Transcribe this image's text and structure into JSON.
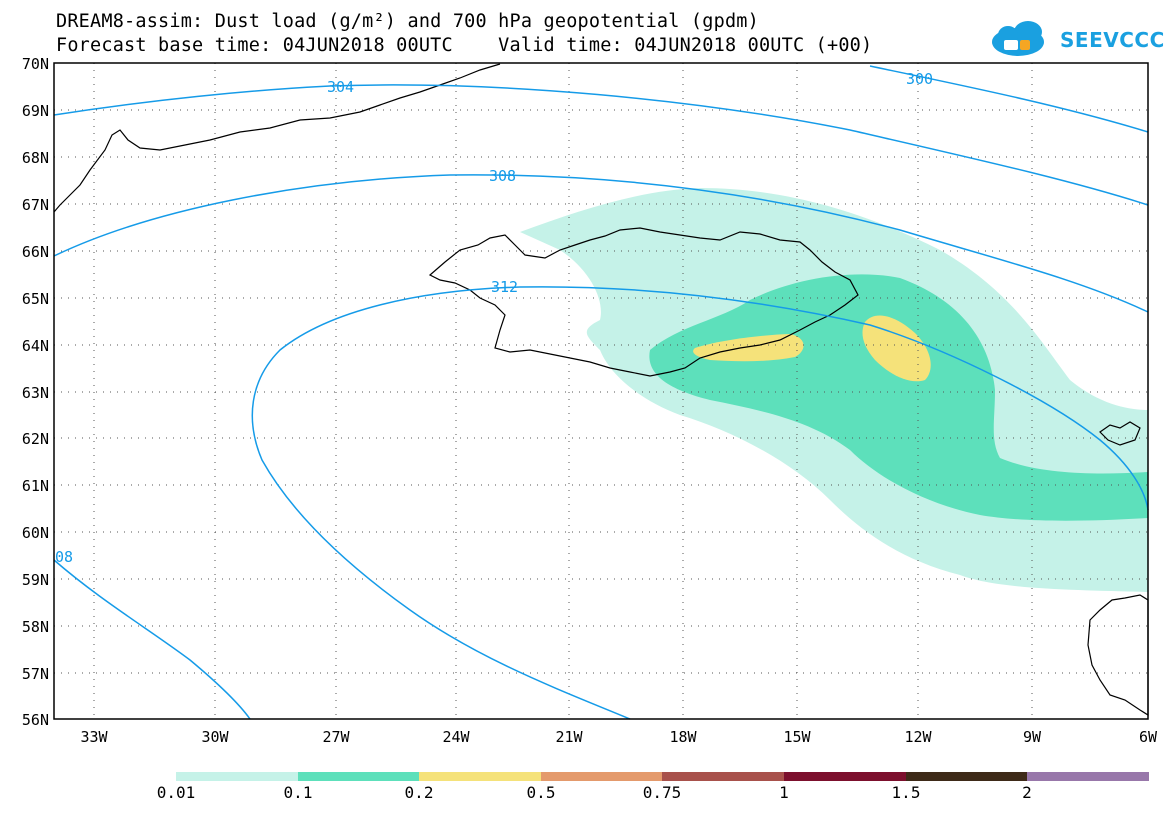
{
  "title_line1": "DREAM8-assim: Dust load (g/m²) and 700 hPa geopotential (gpdm)",
  "title_line2": "Forecast base time: 04JUN2018 00UTC    Valid time: 04JUN2018 00UTC (+00)",
  "logo_text": "SEEVCCC",
  "logo_icon": "cloud-icon",
  "lat_labels": [
    "70N",
    "69N",
    "68N",
    "67N",
    "66N",
    "65N",
    "64N",
    "63N",
    "62N",
    "61N",
    "60N",
    "59N",
    "58N",
    "57N",
    "56N"
  ],
  "lon_labels": [
    "33W",
    "30W",
    "27W",
    "24W",
    "21W",
    "18W",
    "15W",
    "12W",
    "9W",
    "6W"
  ],
  "contour_labels": [
    "304",
    "300",
    "308",
    "312",
    "08"
  ],
  "colorbar": {
    "labels": [
      "0.01",
      "0.1",
      "0.2",
      "0.5",
      "0.75",
      "1",
      "1.5",
      "2"
    ],
    "colors": [
      "#c5f2e8",
      "#5de0bb",
      "#f5e27a",
      "#e49a6c",
      "#a8514b",
      "#7c0f2d",
      "#3e2a18",
      "#9877aa"
    ]
  }
}
